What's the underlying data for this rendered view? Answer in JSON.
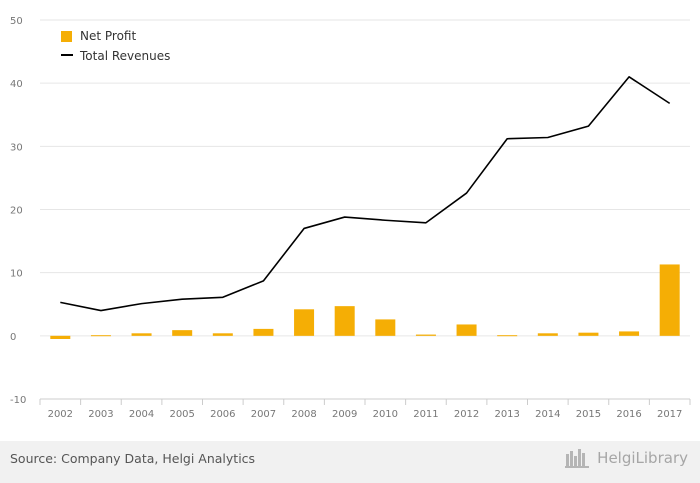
{
  "chart_data": {
    "type": "bar",
    "categories": [
      "2002",
      "2003",
      "2004",
      "2005",
      "2006",
      "2007",
      "2008",
      "2009",
      "2010",
      "2011",
      "2012",
      "2013",
      "2014",
      "2015",
      "2016",
      "2017"
    ],
    "series": [
      {
        "name": "Net Profit",
        "type": "bar",
        "color": "#F5AE05",
        "values": [
          -0.5,
          0.1,
          0.4,
          0.9,
          0.4,
          1.1,
          4.2,
          4.7,
          2.6,
          0.2,
          1.8,
          0.1,
          0.4,
          0.5,
          0.7,
          11.3
        ]
      },
      {
        "name": "Total Revenues",
        "type": "line",
        "color": "#000000",
        "values": [
          5.3,
          4.0,
          5.1,
          5.8,
          6.1,
          8.7,
          17.0,
          18.8,
          18.3,
          17.9,
          22.6,
          31.2,
          31.4,
          33.2,
          41.0,
          36.8
        ]
      }
    ],
    "ylim": [
      -10,
      50
    ],
    "yticks": [
      -10,
      0,
      10,
      20,
      30,
      40,
      50
    ],
    "grid": true,
    "legend_position": "top-left"
  },
  "footer": {
    "source": "Source: Company Data, Helgi Analytics",
    "brand": "HelgiLibrary"
  }
}
